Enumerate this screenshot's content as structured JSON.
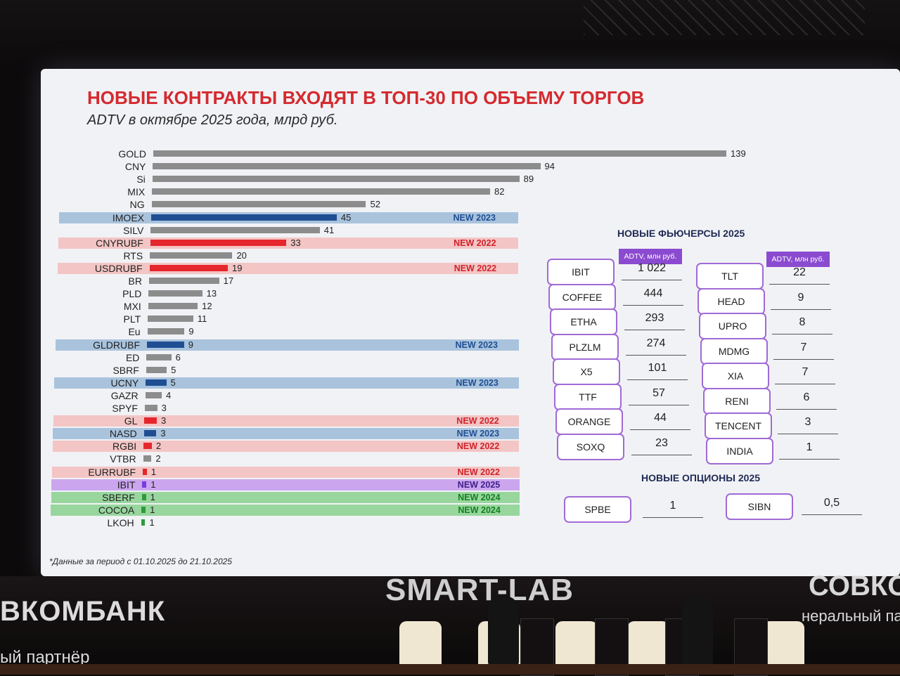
{
  "slide": {
    "title": "НОВЫЕ КОНТРАКТЫ ВХОДЯТ В ТОП-30 ПО ОБЪЕМУ ТОРГОВ",
    "subtitle": "ADTV в октябре 2025 года, млрд руб.",
    "footnote": "*Данные за период с 01.10.2025 до 21.10.2025"
  },
  "colors": {
    "gray": "#8c8c8c",
    "blue": "#1f4e93",
    "red": "#e5262c",
    "purple": "#7a3be0",
    "green": "#2f9a3b",
    "title": "#d42a2f"
  },
  "chart_data": {
    "type": "bar",
    "orientation": "horizontal",
    "title": "НОВЫЕ КОНТРАКТЫ ВХОДЯТ В ТОП-30 ПО ОБЪЕМУ ТОРГОВ",
    "subtitle": "ADTV в октябре 2025 года, млрд руб.",
    "xlim": [
      0,
      139
    ],
    "categories": [
      "GOLD",
      "CNY",
      "Si",
      "MIX",
      "NG",
      "IMOEX",
      "SILV",
      "CNYRUBF",
      "RTS",
      "USDRUBF",
      "BR",
      "PLD",
      "MXI",
      "PLT",
      "Eu",
      "GLDRUBF",
      "ED",
      "SBRF",
      "UCNY",
      "GAZR",
      "SPYF",
      "GL",
      "NASD",
      "RGBI",
      "VTBR",
      "EURRUBF",
      "IBIT",
      "SBERF",
      "COCOA",
      "LKOH"
    ],
    "values": [
      139,
      94,
      89,
      82,
      52,
      45,
      41,
      33,
      20,
      19,
      17,
      13,
      12,
      11,
      9,
      9,
      6,
      5,
      5,
      4,
      3,
      3,
      3,
      2,
      2,
      1,
      1,
      1,
      1,
      1
    ],
    "value_labels": [
      "139",
      "94",
      "89",
      "82",
      "52",
      "45",
      "41",
      "33",
      "20",
      "19",
      "17",
      "13",
      "12",
      "11",
      "9",
      "9",
      "6",
      "5",
      "5",
      "4",
      "3",
      "3",
      "3",
      "2",
      "2",
      "1",
      "1",
      "1",
      "1",
      "1"
    ],
    "bar_colors": [
      "gray",
      "gray",
      "gray",
      "gray",
      "gray",
      "blue",
      "gray",
      "red",
      "gray",
      "red",
      "gray",
      "gray",
      "gray",
      "gray",
      "gray",
      "blue",
      "gray",
      "gray",
      "blue",
      "gray",
      "gray",
      "red",
      "blue",
      "red",
      "gray",
      "red",
      "purple",
      "green",
      "green",
      "green"
    ],
    "highlights": [
      {
        "name": "IMOEX",
        "tag": "NEW 2023",
        "color": "blue"
      },
      {
        "name": "CNYRUBF",
        "tag": "NEW 2022",
        "color": "pink"
      },
      {
        "name": "USDRUBF",
        "tag": "NEW 2022",
        "color": "pink"
      },
      {
        "name": "GLDRUBF",
        "tag": "NEW 2023",
        "color": "blue"
      },
      {
        "name": "UCNY",
        "tag": "NEW 2023",
        "color": "blue"
      },
      {
        "name": "GL",
        "tag": "NEW 2022",
        "color": "pink"
      },
      {
        "name": "NASD",
        "tag": "NEW 2023",
        "color": "blue"
      },
      {
        "name": "RGBI",
        "tag": "NEW 2022",
        "color": "pink"
      },
      {
        "name": "EURRUBF",
        "tag": "NEW 2022",
        "color": "pink"
      },
      {
        "name": "IBIT",
        "tag": "NEW 2025",
        "color": "purple"
      },
      {
        "name": "SBERF",
        "tag": "NEW 2024",
        "color": "green"
      },
      {
        "name": "COCOA",
        "tag": "NEW 2024",
        "color": "green"
      }
    ]
  },
  "futures": {
    "title": "НОВЫЕ ФЬЮЧЕРСЫ 2025",
    "header": "ADTV, млн руб.",
    "left": [
      {
        "ticker": "IBIT",
        "value": "1 022"
      },
      {
        "ticker": "COFFEE",
        "value": "444"
      },
      {
        "ticker": "ETHA",
        "value": "293"
      },
      {
        "ticker": "PLZLM",
        "value": "274"
      },
      {
        "ticker": "X5",
        "value": "101"
      },
      {
        "ticker": "TTF",
        "value": "57"
      },
      {
        "ticker": "ORANGE",
        "value": "44"
      },
      {
        "ticker": "SOXQ",
        "value": "23"
      }
    ],
    "right": [
      {
        "ticker": "TLT",
        "value": "22"
      },
      {
        "ticker": "HEAD",
        "value": "9"
      },
      {
        "ticker": "UPRO",
        "value": "8"
      },
      {
        "ticker": "MDMG",
        "value": "7"
      },
      {
        "ticker": "XIA",
        "value": "7"
      },
      {
        "ticker": "RENI",
        "value": "6"
      },
      {
        "ticker": "TENCENT",
        "value": "3"
      },
      {
        "ticker": "INDIA",
        "value": "1"
      }
    ]
  },
  "options": {
    "title": "НОВЫЕ ОПЦИОНЫ 2025",
    "items": [
      {
        "ticker": "SPBE",
        "value": "1"
      },
      {
        "ticker": "SIBN",
        "value": "0,5"
      }
    ]
  },
  "venue": {
    "sponsor_left": "ВКОМБАНК",
    "sponsor_left_sub": "ый партнёр",
    "event": "SMART-LAB",
    "sponsor_right": "СОВКО",
    "sponsor_right_sub": "неральный пар"
  }
}
